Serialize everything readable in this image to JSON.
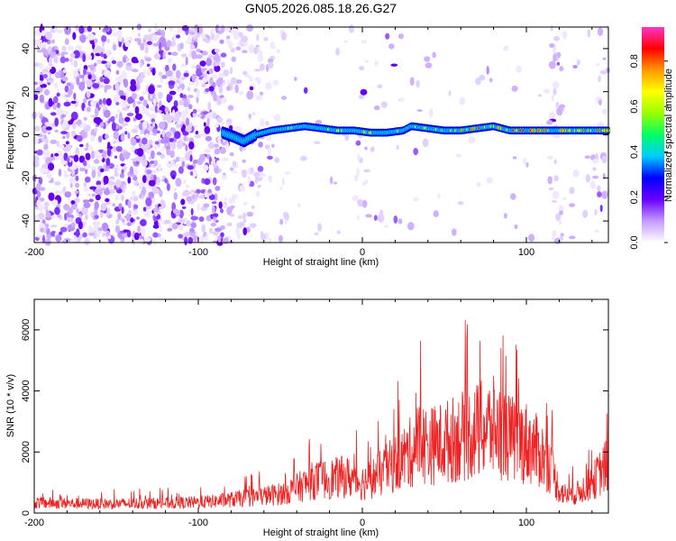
{
  "title": "GN05.2026.085.18.26.G27",
  "chart_data": [
    {
      "type": "heatmap",
      "title": "GN05.2026.085.18.26.G27",
      "xlabel": "Height of straight line (km)",
      "ylabel": "Frequency (Hz)",
      "xlim": [
        -200,
        150
      ],
      "ylim": [
        -50,
        50
      ],
      "xticks": [
        -200,
        -100,
        0,
        100
      ],
      "yticks": [
        -40,
        -20,
        0,
        20,
        40
      ],
      "grid": false,
      "colorbar": {
        "label": "Normalized spectral amplitude",
        "range": [
          0,
          0.95
        ],
        "ticks": [
          "0.0",
          "0.2",
          "0.4",
          "0.6",
          "0.8"
        ],
        "colors": [
          "#ffffff",
          "#c39bff",
          "#6a00ff",
          "#0000ff",
          "#00ccff",
          "#00ff66",
          "#99ff00",
          "#ffff00",
          "#ff9900",
          "#ff0000",
          "#ff33cc"
        ]
      },
      "ridge": {
        "description": "dominant frequency trace",
        "points": [
          {
            "x": -85,
            "y": 1
          },
          {
            "x": -78,
            "y": -1
          },
          {
            "x": -72,
            "y": -3
          },
          {
            "x": -65,
            "y": 0
          },
          {
            "x": -55,
            "y": 2
          },
          {
            "x": -45,
            "y": 3
          },
          {
            "x": -35,
            "y": 4
          },
          {
            "x": -25,
            "y": 3
          },
          {
            "x": -15,
            "y": 2
          },
          {
            "x": -5,
            "y": 2
          },
          {
            "x": 5,
            "y": 1
          },
          {
            "x": 15,
            "y": 1
          },
          {
            "x": 25,
            "y": 2
          },
          {
            "x": 30,
            "y": 4
          },
          {
            "x": 40,
            "y": 3
          },
          {
            "x": 50,
            "y": 2
          },
          {
            "x": 60,
            "y": 2
          },
          {
            "x": 70,
            "y": 3
          },
          {
            "x": 80,
            "y": 4
          },
          {
            "x": 90,
            "y": 2
          },
          {
            "x": 100,
            "y": 2
          },
          {
            "x": 110,
            "y": 2
          },
          {
            "x": 120,
            "y": 2
          },
          {
            "x": 130,
            "y": 2
          },
          {
            "x": 140,
            "y": 2
          },
          {
            "x": 150,
            "y": 2
          }
        ]
      }
    },
    {
      "type": "line",
      "xlabel": "Height of straight line (km)",
      "ylabel": "SNR (10 * v/v)",
      "xlim": [
        -200,
        150
      ],
      "ylim": [
        0,
        7000
      ],
      "xticks": [
        -200,
        -100,
        0,
        100
      ],
      "yticks": [
        0,
        2000,
        4000,
        6000
      ],
      "grid": false,
      "series": [
        {
          "color": "#ee2222",
          "envelope_x": [
            -200,
            -180,
            -160,
            -140,
            -120,
            -100,
            -90,
            -80,
            -70,
            -60,
            -50,
            -40,
            -30,
            -20,
            -10,
            0,
            10,
            20,
            30,
            35,
            40,
            50,
            60,
            70,
            80,
            90,
            100,
            110,
            115,
            120,
            125,
            130,
            140,
            150
          ],
          "envelope_y": [
            550,
            500,
            480,
            500,
            520,
            560,
            620,
            700,
            800,
            900,
            1000,
            1300,
            1700,
            1800,
            1900,
            1600,
            2000,
            2600,
            3200,
            3800,
            3500,
            3700,
            4000,
            4300,
            4500,
            3900,
            3700,
            3000,
            2400,
            1200,
            900,
            1000,
            1600,
            2600
          ]
        }
      ]
    }
  ]
}
